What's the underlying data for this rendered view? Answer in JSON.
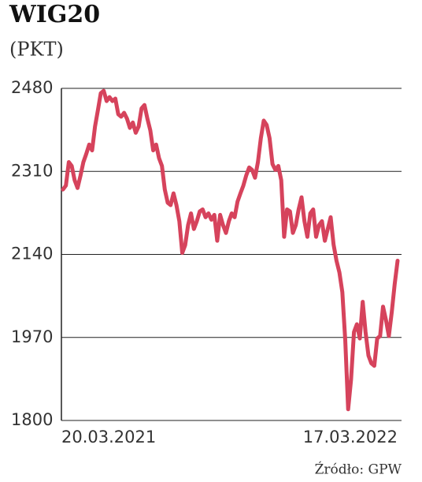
{
  "chart_data": {
    "type": "line",
    "title": "WIG20",
    "subtitle": "(PKT)",
    "source": "Źródło: GPW",
    "categories": [
      "20.03.2021",
      null,
      null,
      null,
      null,
      null,
      null,
      null,
      null,
      null,
      null,
      null,
      null,
      null,
      null,
      null,
      null,
      null,
      null,
      null,
      null,
      null,
      null,
      null,
      null,
      null,
      null,
      null,
      null,
      null,
      null,
      null,
      null,
      null,
      null,
      null,
      null,
      null,
      null,
      null,
      null,
      null,
      null,
      null,
      null,
      null,
      null,
      null,
      null,
      null,
      null,
      null,
      null,
      null,
      null,
      null,
      null,
      null,
      null,
      null,
      null,
      null,
      null,
      null,
      null,
      null,
      null,
      null,
      null,
      null,
      null,
      null,
      null,
      null,
      null,
      null,
      null,
      null,
      null,
      null,
      null,
      null,
      null,
      null,
      null,
      null,
      null,
      null,
      null,
      null,
      null,
      null,
      null,
      null,
      null,
      null,
      null,
      null,
      null,
      null,
      null,
      null,
      null,
      null,
      null,
      null,
      null,
      null,
      null,
      null,
      null,
      null,
      null,
      null,
      null,
      "17.03.2022"
    ],
    "values": [
      2273,
      2281,
      2329,
      2321,
      2292,
      2276,
      2301,
      2329,
      2346,
      2365,
      2353,
      2402,
      2435,
      2470,
      2475,
      2454,
      2462,
      2454,
      2459,
      2427,
      2422,
      2430,
      2418,
      2399,
      2410,
      2389,
      2402,
      2439,
      2446,
      2418,
      2394,
      2353,
      2365,
      2337,
      2321,
      2273,
      2246,
      2241,
      2265,
      2241,
      2208,
      2143,
      2159,
      2200,
      2224,
      2192,
      2208,
      2228,
      2232,
      2216,
      2224,
      2211,
      2221,
      2168,
      2221,
      2200,
      2184,
      2208,
      2224,
      2216,
      2248,
      2265,
      2281,
      2302,
      2318,
      2313,
      2297,
      2329,
      2378,
      2414,
      2405,
      2378,
      2325,
      2313,
      2321,
      2292,
      2176,
      2232,
      2228,
      2184,
      2200,
      2232,
      2257,
      2208,
      2176,
      2224,
      2232,
      2176,
      2200,
      2208,
      2168,
      2192,
      2216,
      2160,
      2127,
      2103,
      2063,
      1965,
      1823,
      1884,
      1981,
      1997,
      1968,
      2043,
      1981,
      1933,
      1917,
      1912,
      1968,
      1973,
      2033,
      2006,
      1973,
      2022,
      2079,
      2127
    ],
    "color": "#d6435c",
    "ylim": [
      1800,
      2480
    ],
    "yticks": [
      1800,
      1970,
      2140,
      2310,
      2480
    ],
    "grid": true
  }
}
